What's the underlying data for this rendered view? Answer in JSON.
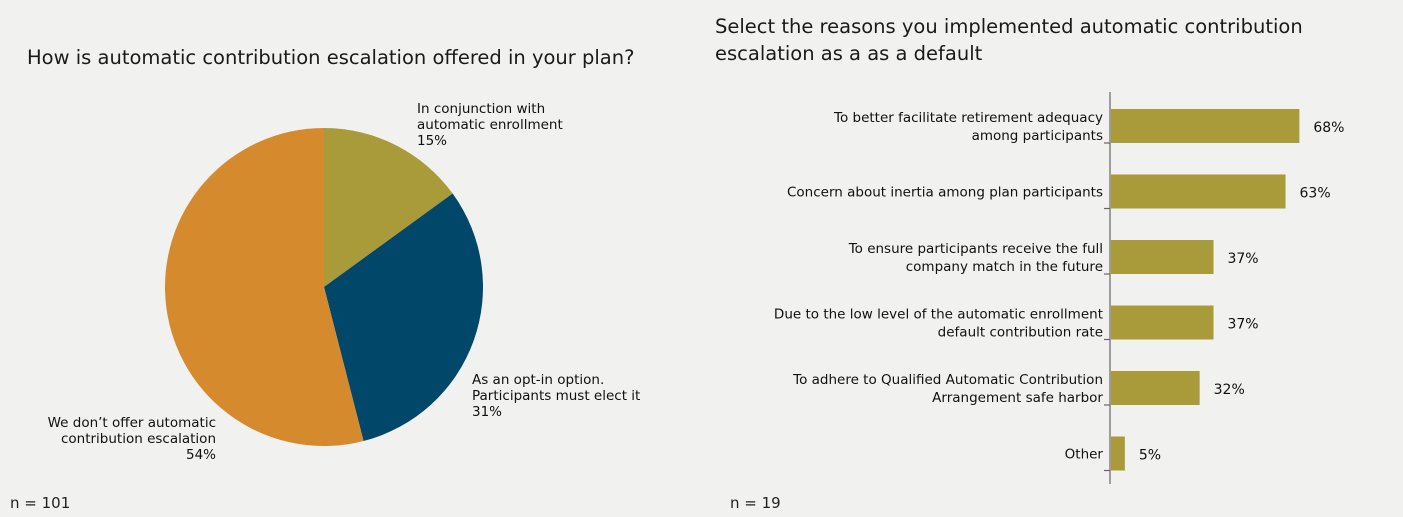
{
  "colors": {
    "olive": "#a99a3a",
    "navy": "#00476a",
    "orange": "#d68a2e",
    "bar": "#a99a3a"
  },
  "left_panel": {
    "title": "How is automatic contribution escalation offered in your plan?",
    "note": "n = 101"
  },
  "right_panel": {
    "title": "Select the reasons you implemented automatic contribution escalation as a as a default",
    "note": "n = 19"
  },
  "chart_data": [
    {
      "type": "pie",
      "title": "How is automatic contribution escalation offered in your plan?",
      "slices": [
        {
          "label_lines": [
            "In conjunction with",
            "automatic enrollment"
          ],
          "value_label": "15%",
          "value": 15,
          "color": "#a99a3a"
        },
        {
          "label_lines": [
            "As an opt-in option.",
            "Participants must elect it"
          ],
          "value_label": "31%",
          "value": 31,
          "color": "#00476a"
        },
        {
          "label_lines": [
            "We don’t offer automatic",
            "contribution escalation"
          ],
          "value_label": "54%",
          "value": 54,
          "color": "#d68a2e"
        }
      ]
    },
    {
      "type": "bar",
      "orientation": "horizontal",
      "title": "Select the reasons you implemented automatic contribution escalation as a as a default",
      "categories": [
        [
          "To better facilitate retirement adequacy",
          "among participants"
        ],
        [
          "Concern about inertia among plan participants"
        ],
        [
          "To ensure participants receive the full",
          "company match in the future"
        ],
        [
          "Due to the low level of the automatic enrollment",
          "default contribution rate"
        ],
        [
          "To adhere to Qualified Automatic Contribution",
          "Arrangement safe harbor"
        ],
        [
          "Other"
        ]
      ],
      "values": [
        68,
        63,
        37,
        37,
        32,
        5
      ],
      "value_labels": [
        "68%",
        "63%",
        "37%",
        "37%",
        "32%",
        "5%"
      ],
      "xlim": [
        0,
        100
      ],
      "legend": "none",
      "grid": false
    }
  ]
}
